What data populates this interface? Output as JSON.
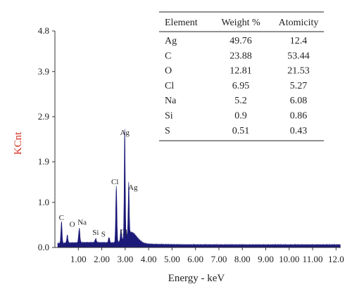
{
  "chart_data": {
    "type": "line",
    "xlabel": "Energy - keV",
    "ylabel": "KCnt",
    "xlim": [
      0,
      12.2
    ],
    "ylim": [
      0,
      4.8
    ],
    "x_ticks": [
      1.0,
      2.0,
      3.0,
      4.0,
      5.0,
      6.0,
      7.0,
      8.0,
      9.0,
      10.0,
      11.0,
      12.0
    ],
    "x_tick_labels": [
      "1.00",
      "2.00",
      "3.00",
      "4.00",
      "5.00",
      "6.00",
      "7.00",
      "8.00",
      "9.00",
      "10.00",
      "11.00",
      "12.0"
    ],
    "y_ticks": [
      0.0,
      1.0,
      1.9,
      2.9,
      3.9,
      4.8
    ],
    "y_tick_labels": [
      "0.0",
      "1.0",
      "1.9",
      "2.9",
      "3.9",
      "4.8"
    ],
    "spectrum_color": "#1c1a78",
    "ylabel_color": "#d62b1f",
    "peaks": [
      {
        "label": "C",
        "x": 0.28,
        "y": 0.48
      },
      {
        "label": "O",
        "x": 0.53,
        "y": 0.18
      },
      {
        "label": "Na",
        "x": 1.04,
        "y": 0.32
      },
      {
        "label": "Si",
        "x": 1.74,
        "y": 0.09
      },
      {
        "label": "S",
        "x": 2.31,
        "y": 0.12
      },
      {
        "label": "Cl",
        "x": 2.62,
        "y": 1.25
      },
      {
        "label": "Cl",
        "x": 2.82,
        "y": 0.26
      },
      {
        "label": "Ag",
        "x": 2.98,
        "y": 2.4
      },
      {
        "label": "Ag",
        "x": 3.15,
        "y": 1.12
      }
    ],
    "table": {
      "headers": [
        "Element",
        "Weight %",
        "Atomicity"
      ],
      "rows": [
        [
          "Ag",
          "49.76",
          "12.4"
        ],
        [
          "C",
          "23.88",
          "53.44"
        ],
        [
          "O",
          "12.81",
          "21.53"
        ],
        [
          "Cl",
          "6.95",
          "5.27"
        ],
        [
          "Na",
          "5.2",
          "6.08"
        ],
        [
          "Si",
          "0.9",
          "0.86"
        ],
        [
          "S",
          "0.51",
          "0.43"
        ]
      ]
    }
  }
}
